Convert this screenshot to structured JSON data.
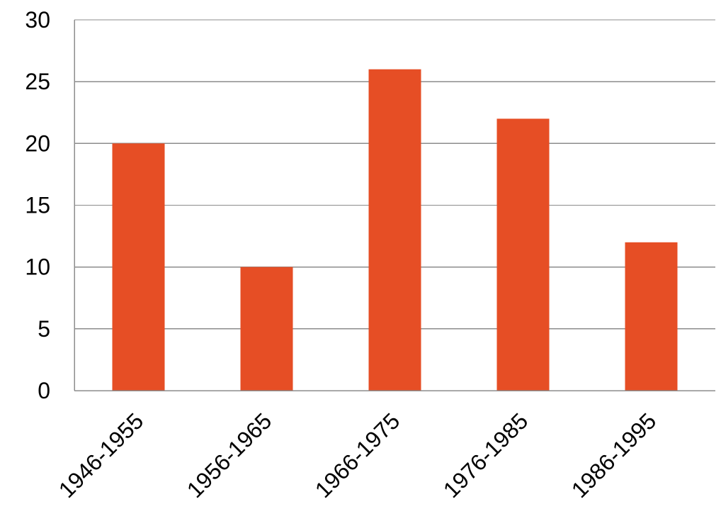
{
  "chart_data": {
    "type": "bar",
    "categories": [
      "1946-1955",
      "1956-1965",
      "1966-1975",
      "1976-1985",
      "1986-1995"
    ],
    "values": [
      20,
      10,
      26,
      22,
      12
    ],
    "title": "",
    "xlabel": "",
    "ylabel": "",
    "ylim": [
      0,
      30
    ],
    "yticks": [
      0,
      5,
      10,
      15,
      20,
      25,
      30
    ],
    "ytick_labels": [
      "0",
      "5",
      "10",
      "15",
      "20",
      "25",
      "30"
    ],
    "grid": true,
    "legend": "none",
    "bar_color": "#e64e25"
  }
}
